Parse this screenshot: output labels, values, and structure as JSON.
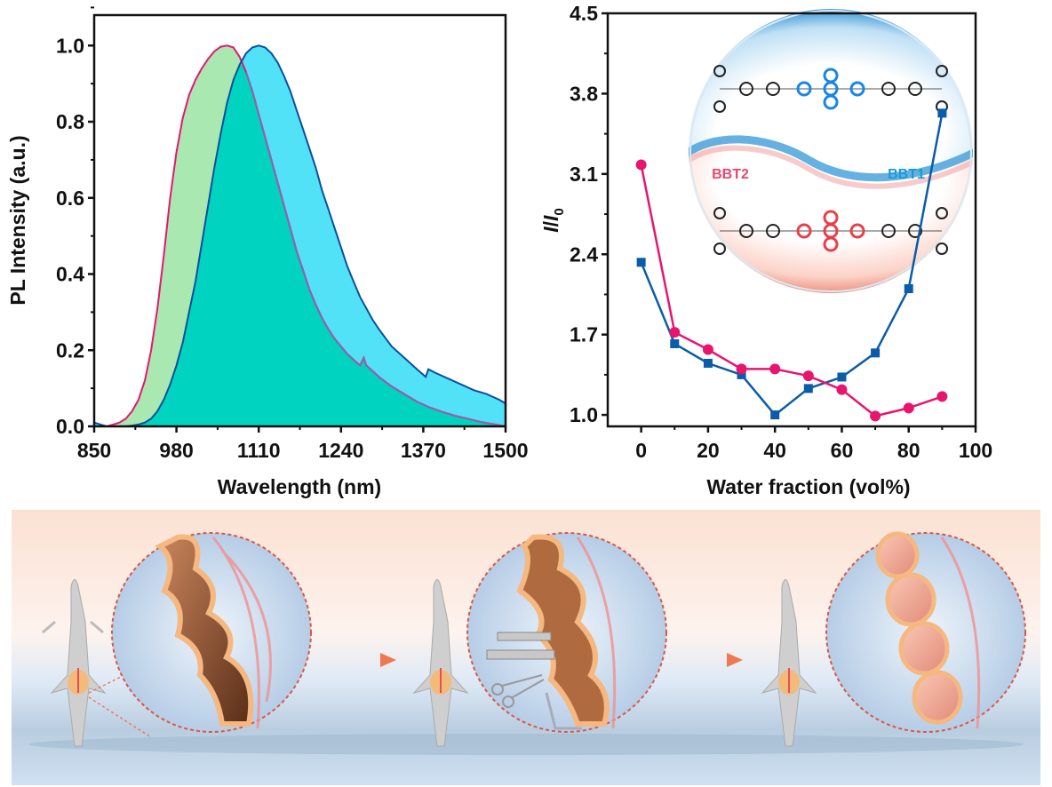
{
  "figure": {
    "panels": [
      "pl-spectra",
      "aie-curve",
      "surgery-illustration"
    ]
  },
  "chart_data": [
    {
      "id": "pl-spectra",
      "type": "area",
      "title": "",
      "xlabel": "Wavelength (nm)",
      "ylabel": "PL Intensity (a.u.)",
      "xlim": [
        850,
        1500
      ],
      "ylim": [
        0.0,
        1.08
      ],
      "xticks": [
        850,
        980,
        1110,
        1240,
        1370,
        1500
      ],
      "xtick_labels": [
        "850",
        "980",
        "1110",
        "1240",
        "1370",
        "1500"
      ],
      "yticks": [
        0.0,
        0.2,
        0.4,
        0.6,
        0.8,
        1.0
      ],
      "ytick_labels": [
        "0.0",
        "0.2",
        "0.4",
        "0.6",
        "0.8",
        "1.0"
      ],
      "grid": false,
      "legend": null,
      "series": [
        {
          "name": "BBT2",
          "line_color": "#e8156e",
          "fill_color": "#a9e8b0",
          "x": [
            850,
            870,
            880,
            890,
            900,
            910,
            920,
            930,
            940,
            950,
            960,
            970,
            980,
            990,
            1000,
            1010,
            1020,
            1030,
            1040,
            1050,
            1060,
            1070,
            1080,
            1090,
            1100,
            1110,
            1120,
            1130,
            1140,
            1150,
            1160,
            1170,
            1180,
            1190,
            1200,
            1210,
            1220,
            1230,
            1240,
            1250,
            1260,
            1270,
            1276,
            1280,
            1290,
            1300,
            1320,
            1340,
            1360,
            1380,
            1400,
            1420,
            1440,
            1460,
            1480,
            1500
          ],
          "y": [
            0.0,
            0.0,
            0.005,
            0.01,
            0.02,
            0.04,
            0.07,
            0.12,
            0.2,
            0.31,
            0.45,
            0.6,
            0.72,
            0.81,
            0.87,
            0.91,
            0.94,
            0.965,
            0.985,
            0.997,
            1.0,
            0.995,
            0.97,
            0.93,
            0.88,
            0.82,
            0.76,
            0.7,
            0.64,
            0.58,
            0.52,
            0.46,
            0.41,
            0.36,
            0.32,
            0.285,
            0.255,
            0.23,
            0.21,
            0.19,
            0.175,
            0.16,
            0.18,
            0.16,
            0.145,
            0.13,
            0.105,
            0.085,
            0.065,
            0.05,
            0.038,
            0.028,
            0.02,
            0.012,
            0.006,
            0.0
          ]
        },
        {
          "name": "BBT1",
          "line_color": "#0d4f9c",
          "fill_color": "#52e2f8",
          "x": [
            850,
            860,
            870,
            880,
            890,
            900,
            910,
            920,
            930,
            940,
            950,
            960,
            970,
            980,
            990,
            1000,
            1010,
            1020,
            1030,
            1040,
            1050,
            1060,
            1070,
            1080,
            1090,
            1100,
            1110,
            1120,
            1130,
            1140,
            1150,
            1160,
            1170,
            1180,
            1190,
            1200,
            1210,
            1220,
            1230,
            1240,
            1250,
            1260,
            1270,
            1280,
            1290,
            1300,
            1320,
            1340,
            1360,
            1374,
            1378,
            1390,
            1410,
            1430,
            1450,
            1470,
            1490,
            1500
          ],
          "y": [
            0.01,
            0.005,
            0.0,
            0.0,
            0.0,
            0.0,
            0.002,
            0.005,
            0.01,
            0.02,
            0.04,
            0.07,
            0.11,
            0.16,
            0.22,
            0.3,
            0.38,
            0.48,
            0.58,
            0.68,
            0.77,
            0.85,
            0.91,
            0.95,
            0.98,
            0.995,
            1.0,
            0.995,
            0.98,
            0.955,
            0.92,
            0.88,
            0.83,
            0.78,
            0.73,
            0.68,
            0.62,
            0.57,
            0.52,
            0.47,
            0.42,
            0.38,
            0.34,
            0.31,
            0.28,
            0.255,
            0.21,
            0.18,
            0.15,
            0.13,
            0.15,
            0.14,
            0.125,
            0.11,
            0.095,
            0.085,
            0.07,
            0.06
          ]
        }
      ],
      "overlap_fill_color": "#00d4c0"
    },
    {
      "id": "aie-curve",
      "type": "line",
      "title": "",
      "xlabel": "Water fraction (vol%)",
      "ylabel": "I/I0",
      "xlim": [
        -10,
        100
      ],
      "ylim": [
        0.9,
        4.5
      ],
      "xticks": [
        0,
        20,
        40,
        60,
        80,
        100
      ],
      "xtick_labels": [
        "0",
        "20",
        "40",
        "60",
        "80",
        "100"
      ],
      "yticks": [
        1.0,
        1.7,
        2.4,
        3.1,
        3.8,
        4.5
      ],
      "ytick_labels": [
        "1.0",
        "1.7",
        "2.4",
        "3.1",
        "3.8",
        "4.5"
      ],
      "grid": false,
      "legend": null,
      "x": [
        0,
        10,
        20,
        30,
        40,
        50,
        60,
        70,
        80,
        90
      ],
      "series": [
        {
          "name": "BBT1",
          "color": "#0b5ca8",
          "marker": "square",
          "values": [
            2.33,
            1.62,
            1.45,
            1.35,
            1.0,
            1.23,
            1.33,
            1.54,
            2.1,
            3.63
          ]
        },
        {
          "name": "BBT2",
          "color": "#e8156e",
          "marker": "circle",
          "values": [
            3.18,
            1.72,
            1.57,
            1.4,
            1.4,
            1.34,
            1.22,
            0.99,
            1.06,
            1.16
          ]
        }
      ],
      "inset": {
        "labels": [
          "BBT2",
          "BBT1"
        ],
        "label_colors": [
          "#e8476e",
          "#1a9ad6"
        ],
        "top_color": "#3c9ad8",
        "bottom_color": "#f0907e"
      }
    }
  ],
  "illustration": {
    "stages": [
      {
        "name": "healthy-colon"
      },
      {
        "name": "surgery-with-instruments"
      },
      {
        "name": "colon-with-tumors"
      }
    ],
    "arrow_color": "#f07850",
    "bg_top": "#fbe3d5",
    "bg_bottom": "#c4dcf0"
  }
}
